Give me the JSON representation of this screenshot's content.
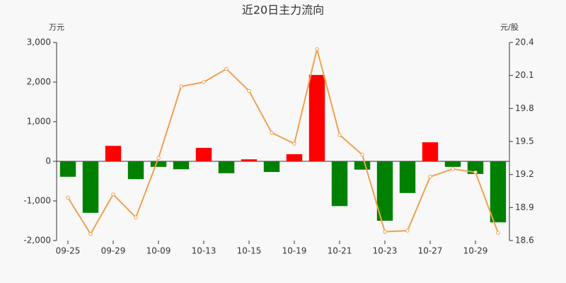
{
  "chart_data": {
    "type": "bar-line",
    "title": "近20日主力流向",
    "y_label": "万元",
    "y2_label": "元/股",
    "categories": [
      "09-25",
      null,
      "09-29",
      null,
      "10-09",
      null,
      "10-13",
      null,
      "10-15",
      null,
      "10-19",
      null,
      "10-21",
      null,
      "10-23",
      null,
      "10-27",
      null,
      "10-29",
      null
    ],
    "series": [
      {
        "type": "bar",
        "positive_color": "#ff0000",
        "negative_color": "#008000",
        "values": [
          -390,
          -1300,
          390,
          -450,
          -140,
          -200,
          340,
          -300,
          50,
          -270,
          180,
          2180,
          -1130,
          -210,
          -1500,
          -800,
          480,
          -140,
          -320,
          -1540
        ]
      },
      {
        "type": "line",
        "axis": "y2",
        "color": "#f0a050",
        "values": [
          18.99,
          18.66,
          19.02,
          18.81,
          19.35,
          20.0,
          20.04,
          20.16,
          19.96,
          19.58,
          19.48,
          20.34,
          19.56,
          19.38,
          18.68,
          18.69,
          19.18,
          19.25,
          19.22,
          18.67
        ]
      }
    ],
    "ylim": [
      -2000,
      3000
    ],
    "yticks": [
      {
        "value": -2000,
        "label": "-2,000"
      },
      {
        "value": -1000,
        "label": "-1,000"
      },
      0,
      {
        "value": 1000,
        "label": "1,000"
      },
      {
        "value": 2000,
        "label": "2,000"
      },
      {
        "value": 3000,
        "label": "3,000"
      }
    ],
    "y2lim": [
      18.6,
      20.4
    ],
    "y2ticks": [
      18.6,
      18.9,
      19.2,
      19.5,
      19.8,
      20.1,
      20.4
    ]
  }
}
